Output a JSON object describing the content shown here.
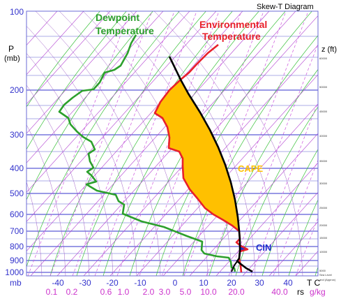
{
  "title": "Skew-T Diagram",
  "y_axis": {
    "unit_top": "P",
    "unit_top2": "(mb)",
    "unit_bottom": "mb",
    "pressure_levels": [
      "100",
      "200",
      "300",
      "400",
      "500",
      "600",
      "700",
      "800",
      "900",
      "1000"
    ]
  },
  "x_axis": {
    "temps": [
      "-40",
      "-30",
      "-20",
      "-10",
      "0",
      "10",
      "20",
      "30",
      "40"
    ],
    "temp_unit": "T C",
    "mixing": [
      "0.1",
      "0.2",
      "0.6",
      "1.0",
      "2.0",
      "3.0",
      "5.0",
      "10.0",
      "20.0",
      "40.0"
    ],
    "mixing_unit_prefix": "rs",
    "mixing_unit": "g/kg"
  },
  "right_axis": {
    "label": "z (ft)",
    "ticks": [
      "60000",
      "50000",
      "45000",
      "40000",
      "35000",
      "30000",
      "25000",
      "20000",
      "15000",
      "10000",
      "5000",
      "Sea Level",
      "and (Approx)"
    ]
  },
  "annotations": {
    "dewpoint_line1": "Dewpoint",
    "dewpoint_line2": "Temperature",
    "env_line1": "Environmental",
    "env_line2": "Temperature",
    "cape": "CAPE",
    "cin": "CIN"
  },
  "colors": {
    "isobar": "#3333cc",
    "isotherm_text": "#3333cc",
    "dewpoint": "#2ca02c",
    "environment": "#e8202a",
    "parcel": "#000000",
    "cape_fill": "#ffc000",
    "cin_fill": "#1f2fcc",
    "cin_text": "#1f2fcc",
    "cape_text": "#ffc000",
    "mixing_text": "#cc33cc"
  }
}
